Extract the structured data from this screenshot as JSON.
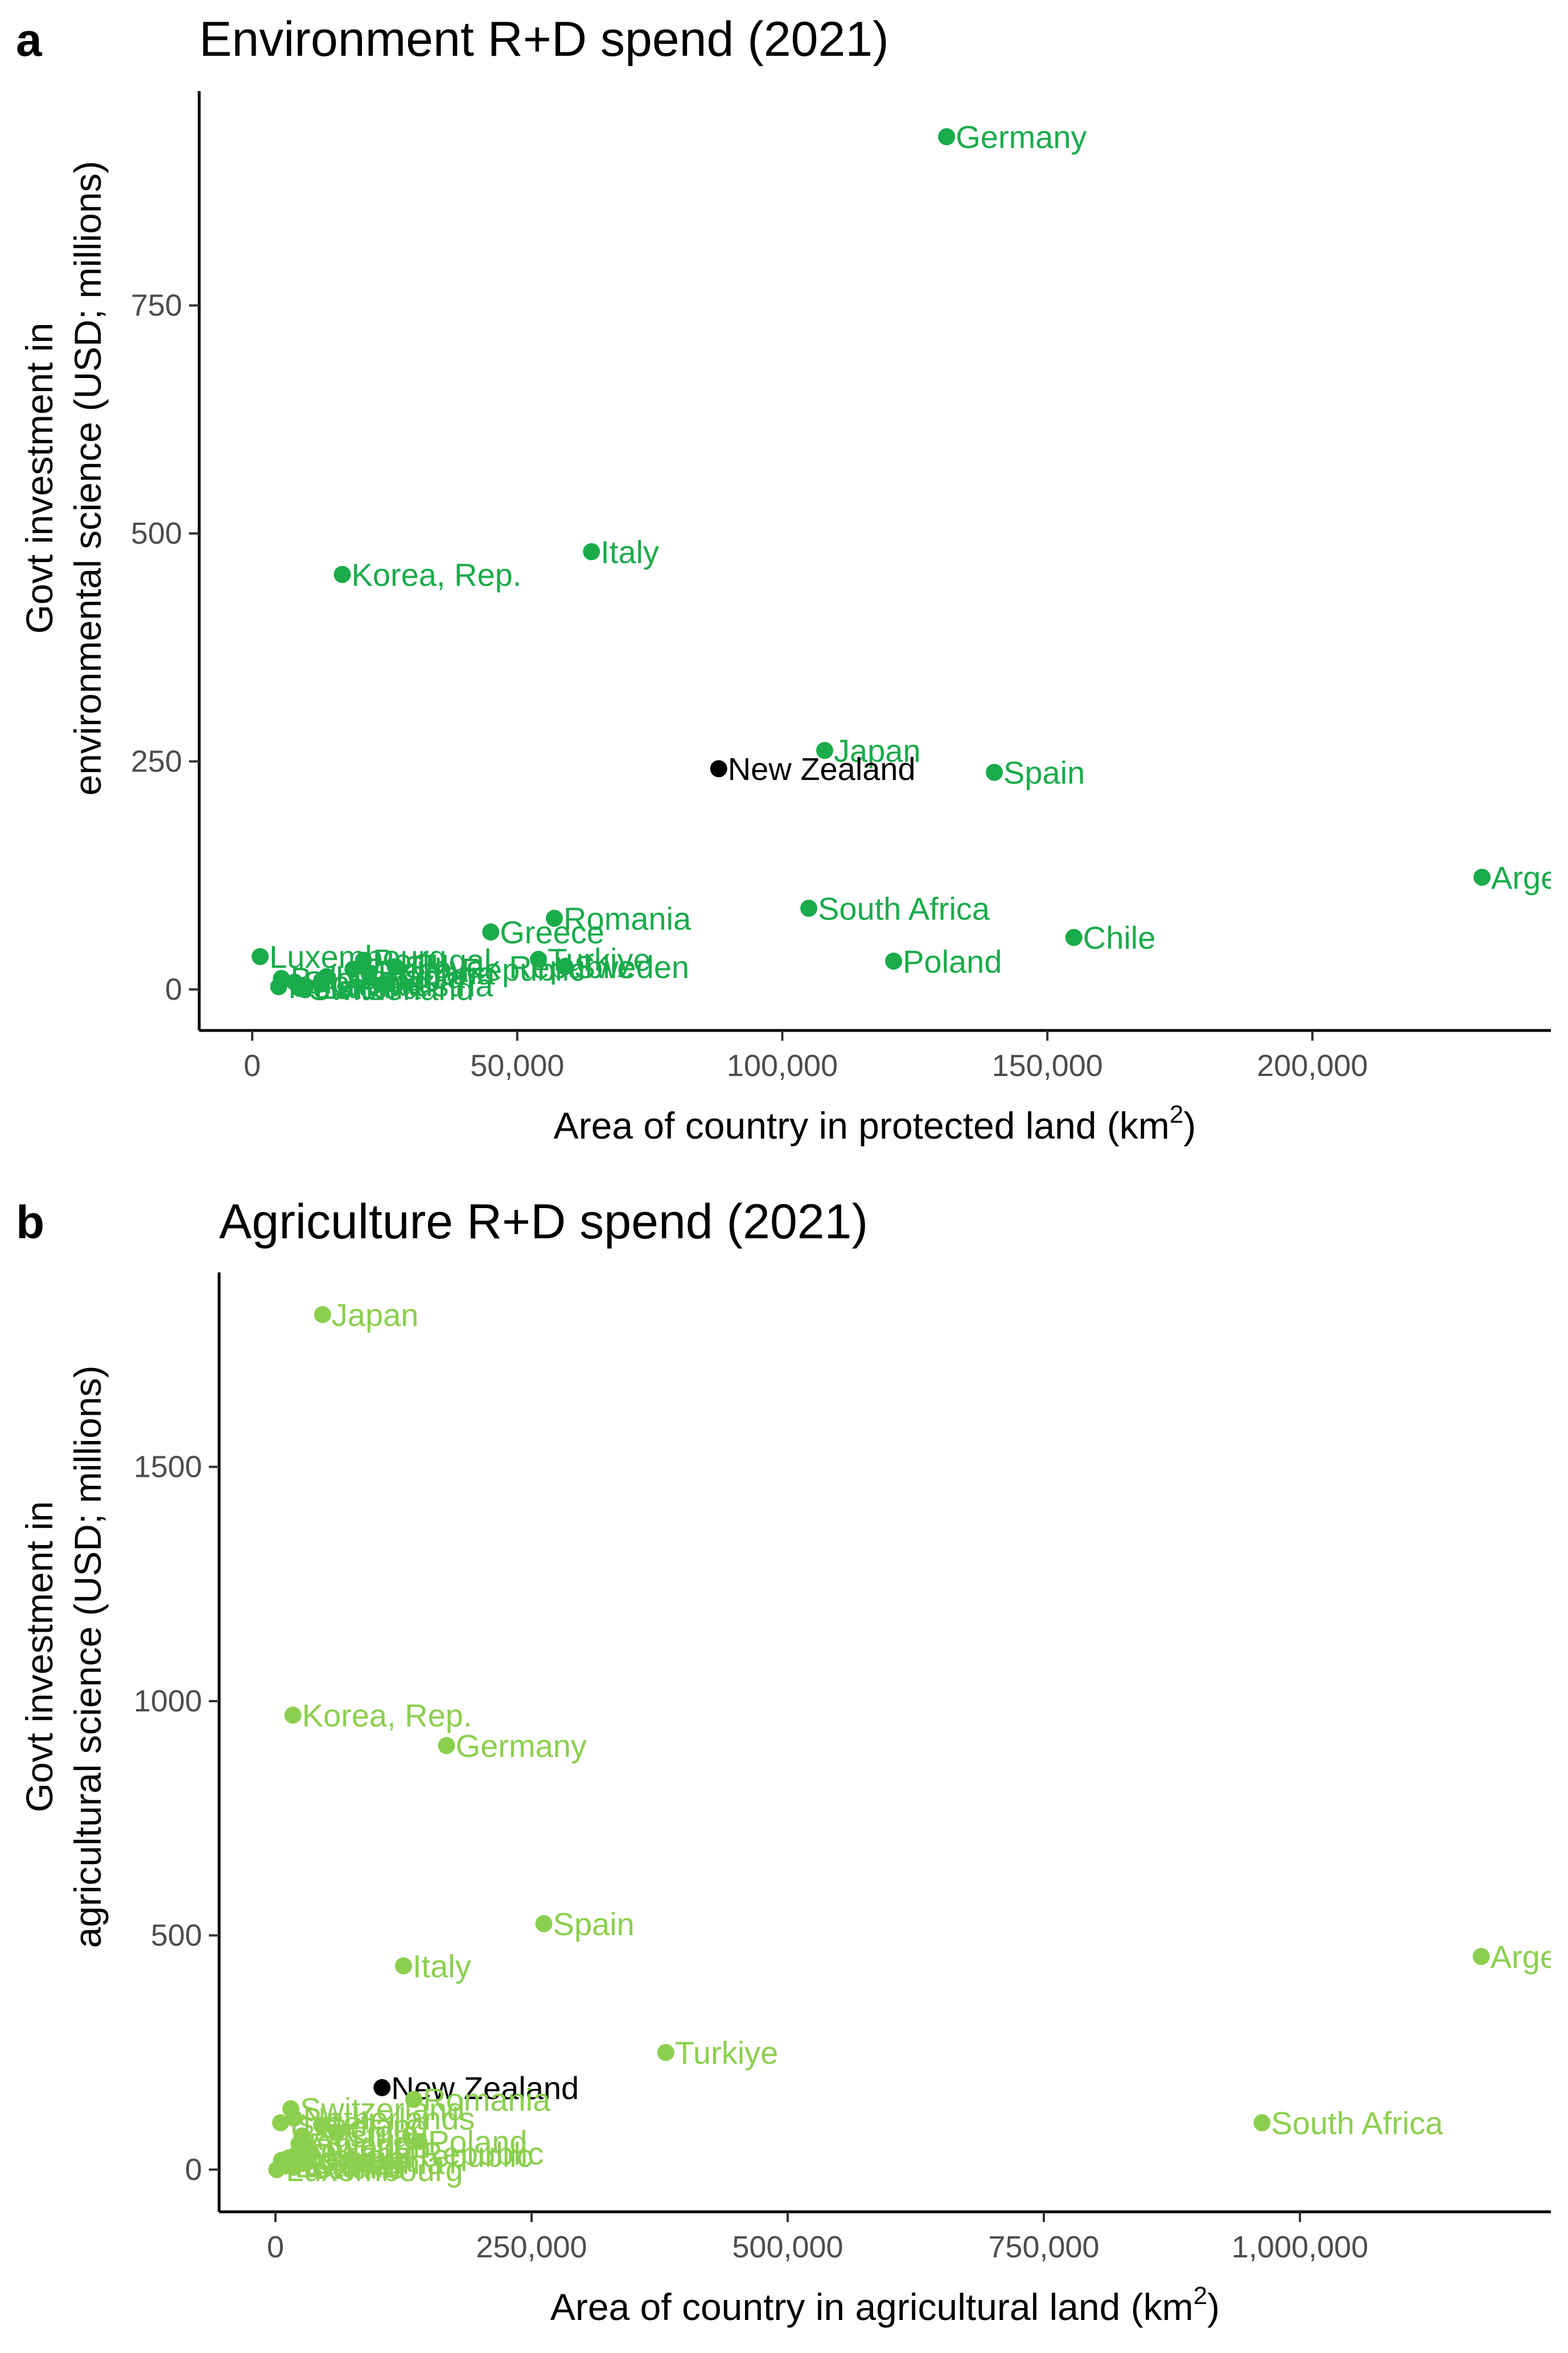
{
  "panels": [
    {
      "letter": "a",
      "title": "Environment R+D spend (2021)",
      "ylabel_line1": "Govt investment in",
      "ylabel_line2": "environmental science (USD; millions)",
      "xlabel_main": "Area of country in protected land (km",
      "xlabel_sup": "2",
      "xlabel_end": ")"
    },
    {
      "letter": "b",
      "title": "Agriculture R+D spend (2021)",
      "ylabel_line1": "Govt investment in",
      "ylabel_line2": "agricultural science (USD; millions)",
      "xlabel_main": "Area of country in agricultural land (km",
      "xlabel_sup": "2",
      "xlabel_end": ")"
    }
  ],
  "chart_data": [
    {
      "type": "scatter",
      "title": "Environment R+D spend (2021)",
      "xlabel": "Area of country in protected land (km2)",
      "ylabel": "Govt investment in environmental science (USD; millions)",
      "x_ticks": [
        0,
        50000,
        100000,
        150000,
        200000
      ],
      "x_tick_labels": [
        "0",
        "50,000",
        "100,000",
        "150,000",
        "200,000"
      ],
      "y_ticks": [
        0,
        250,
        500,
        750
      ],
      "y_tick_labels": [
        "0",
        "250",
        "500",
        "750"
      ],
      "xlim": [
        -10000,
        245000
      ],
      "ylim": [
        -45,
        985
      ],
      "grid": false,
      "colors": {
        "default": "#1aab4b",
        "highlight": "#000000"
      },
      "points": [
        {
          "label": "Germany",
          "x": 131000,
          "y": 935
        },
        {
          "label": "Italy",
          "x": 64000,
          "y": 480
        },
        {
          "label": "Korea, Rep.",
          "x": 17000,
          "y": 455
        },
        {
          "label": "Japan",
          "x": 108000,
          "y": 262
        },
        {
          "label": "New Zealand",
          "x": 88000,
          "y": 242,
          "highlight": true
        },
        {
          "label": "Spain",
          "x": 140000,
          "y": 238
        },
        {
          "label": "Arge",
          "x": 232000,
          "y": 123
        },
        {
          "label": "South Africa",
          "x": 105000,
          "y": 89
        },
        {
          "label": "Romania",
          "x": 57000,
          "y": 78
        },
        {
          "label": "Greece",
          "x": 45000,
          "y": 63
        },
        {
          "label": "Chile",
          "x": 155000,
          "y": 57
        },
        {
          "label": "Luxembourg",
          "x": 1500,
          "y": 36
        },
        {
          "label": "Portugal",
          "x": 21000,
          "y": 32
        },
        {
          "label": "Turkiye",
          "x": 54000,
          "y": 33
        },
        {
          "label": "Poland",
          "x": 121000,
          "y": 31
        },
        {
          "label": "Slovak Republic",
          "x": 27000,
          "y": 25
        },
        {
          "label": "Sweden",
          "x": 59000,
          "y": 25
        },
        {
          "label": "Czech Republic",
          "x": 19000,
          "y": 22
        },
        {
          "label": "Bulgaria",
          "x": 22000,
          "y": 18
        },
        {
          "label": "Lithuania",
          "x": 14000,
          "y": 14
        },
        {
          "label": "Belgium",
          "x": 5500,
          "y": 12
        },
        {
          "label": "Slovenia",
          "x": 8000,
          "y": 8
        },
        {
          "label": "Latvia",
          "x": 13000,
          "y": 6
        },
        {
          "label": "Austria",
          "x": 25000,
          "y": 5
        },
        {
          "label": "Estonia",
          "x": 10000,
          "y": 2
        },
        {
          "label": "Iceland",
          "x": 5000,
          "y": 3
        },
        {
          "label": "Switzerland",
          "x": 9000,
          "y": 1
        }
      ]
    },
    {
      "type": "scatter",
      "title": "Agriculture R+D spend (2021)",
      "xlabel": "Area of country in agricultural land (km2)",
      "ylabel": "Govt investment in agricultural science (USD; millions)",
      "x_ticks": [
        0,
        250000,
        500000,
        750000,
        1000000
      ],
      "x_tick_labels": [
        "0",
        "250,000",
        "500,000",
        "750,000",
        "1,000,000"
      ],
      "y_ticks": [
        0,
        500,
        1000,
        1500
      ],
      "y_tick_labels": [
        "0",
        "500",
        "1000",
        "1500"
      ],
      "xlim": [
        -55000,
        1245000
      ],
      "ylim": [
        -90,
        1915
      ],
      "grid": false,
      "colors": {
        "default": "#8ccf4f",
        "highlight": "#000000"
      },
      "points": [
        {
          "label": "Japan",
          "x": 46000,
          "y": 1825
        },
        {
          "label": "Korea, Rep.",
          "x": 17000,
          "y": 970
        },
        {
          "label": "Germany",
          "x": 167000,
          "y": 905
        },
        {
          "label": "Spain",
          "x": 262000,
          "y": 525
        },
        {
          "label": "Arge",
          "x": 1177000,
          "y": 455
        },
        {
          "label": "Italy",
          "x": 125000,
          "y": 435
        },
        {
          "label": "Turkiye",
          "x": 381000,
          "y": 250
        },
        {
          "label": "New Zealand",
          "x": 104000,
          "y": 175,
          "highlight": true
        },
        {
          "label": "Romania",
          "x": 135000,
          "y": 150
        },
        {
          "label": "Switzerland",
          "x": 15000,
          "y": 130
        },
        {
          "label": "Netherlands",
          "x": 18000,
          "y": 110
        },
        {
          "label": "Israel",
          "x": 5000,
          "y": 100
        },
        {
          "label": "South Africa",
          "x": 963000,
          "y": 100
        },
        {
          "label": "Ireland",
          "x": 45000,
          "y": 95
        },
        {
          "label": "Chile",
          "x": 60000,
          "y": 80
        },
        {
          "label": "Austria",
          "x": 26000,
          "y": 72
        },
        {
          "label": "Poland",
          "x": 140000,
          "y": 60
        },
        {
          "label": "Finland",
          "x": 23000,
          "y": 55
        },
        {
          "label": "Sweden",
          "x": 30000,
          "y": 50
        },
        {
          "label": "Czech Republic",
          "x": 35000,
          "y": 35
        },
        {
          "label": "Slovak Republic",
          "x": 19000,
          "y": 30
        },
        {
          "label": "Belgium",
          "x": 13000,
          "y": 25
        },
        {
          "label": "Slovenia",
          "x": 6000,
          "y": 20
        },
        {
          "label": "Lithuania",
          "x": 30000,
          "y": 15
        },
        {
          "label": "Latvia",
          "x": 20000,
          "y": 12
        },
        {
          "label": "Estonia",
          "x": 10000,
          "y": 8
        },
        {
          "label": "Iceland",
          "x": 18000,
          "y": 5
        },
        {
          "label": "Luxembourg",
          "x": 1300,
          "y": 0
        }
      ]
    }
  ]
}
